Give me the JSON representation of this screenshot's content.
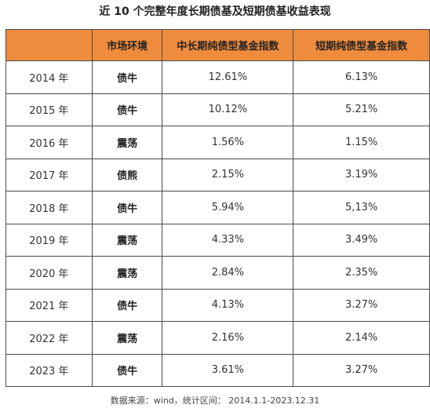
{
  "title": "近 10 个完整年度长期债基及短期债基收益表现",
  "table": {
    "headers": [
      "",
      "市场环境",
      "中长期纯债型基金指数",
      "短期纯债型基金指数"
    ],
    "rows": [
      {
        "year": "2014 年",
        "market": "债牛",
        "long_term": "12.61%",
        "short_term": "6.13%"
      },
      {
        "year": "2015 年",
        "market": "债牛",
        "long_term": "10.12%",
        "short_term": "5.21%"
      },
      {
        "year": "2016 年",
        "market": "震荡",
        "long_term": "1.56%",
        "short_term": "1.15%"
      },
      {
        "year": "2017 年",
        "market": "债熊",
        "long_term": "2.15%",
        "short_term": "3.19%"
      },
      {
        "year": "2018 年",
        "market": "债牛",
        "long_term": "5.94%",
        "short_term": "5,13%"
      },
      {
        "year": "2019 年",
        "market": "震荡",
        "long_term": "4.33%",
        "short_term": "3.49%"
      },
      {
        "year": "2020 年",
        "market": "震荡",
        "long_term": "2.84%",
        "short_term": "2.35%"
      },
      {
        "year": "2021 年",
        "market": "债牛",
        "long_term": "4.13%",
        "short_term": "3.27%"
      },
      {
        "year": "2022 年",
        "market": "震荡",
        "long_term": "2.16%",
        "short_term": "2.14%"
      },
      {
        "year": "2023 年",
        "market": "债牛",
        "long_term": "3.61%",
        "short_term": "3.27%"
      }
    ]
  },
  "source": "数据来源：wind，统计区间：  2014.1.1-2023.12.31",
  "colors": {
    "header_background": "#ef8b3c",
    "border": "#4a4a4a",
    "text": "#333333"
  }
}
